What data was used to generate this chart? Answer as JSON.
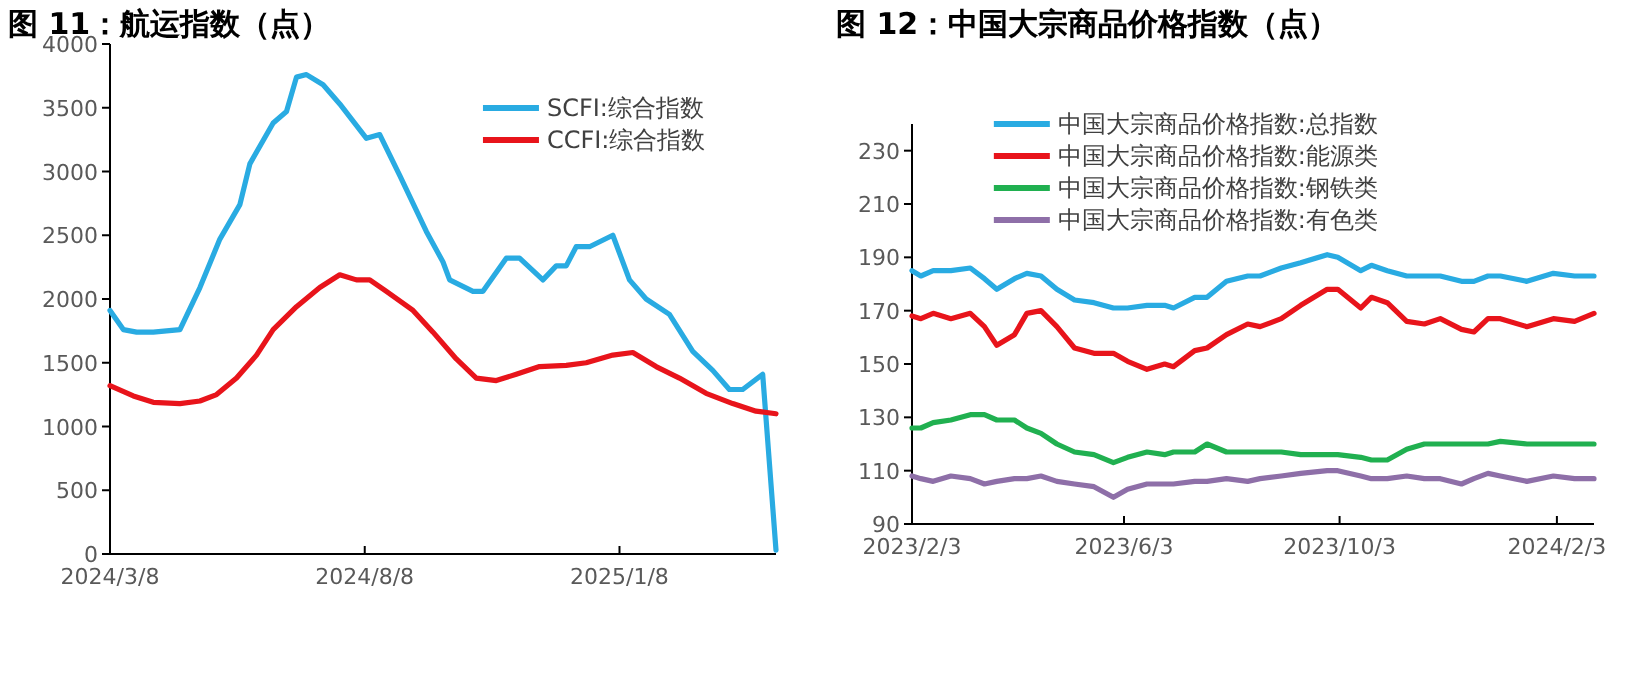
{
  "chart_data": [
    {
      "type": "line",
      "title": "图 11：航运指数（点）",
      "xlim": [
        "2024-03-08",
        "2025-04-12"
      ],
      "ylim": [
        0,
        4000
      ],
      "xticks": [
        {
          "value": "2024-03-08",
          "label": "2024/3/8"
        },
        {
          "value": "2024-08-08",
          "label": "2024/8/8"
        },
        {
          "value": "2025-01-08",
          "label": "2025/1/8"
        }
      ],
      "yticks": [
        0,
        500,
        1000,
        1500,
        2000,
        2500,
        3000,
        3500,
        4000
      ],
      "legend": "top right",
      "series": [
        {
          "name": "SCFI:综合指数",
          "color": "#29abe2",
          "x": [
            "2024-03-08",
            "2024-03-16",
            "2024-03-24",
            "2024-04-03",
            "2024-04-11",
            "2024-04-19",
            "2024-05-01",
            "2024-05-13",
            "2024-05-25",
            "2024-05-31",
            "2024-06-14",
            "2024-06-22",
            "2024-06-28",
            "2024-07-04",
            "2024-07-14",
            "2024-07-24",
            "2024-08-09",
            "2024-08-17",
            "2024-08-29",
            "2024-09-14",
            "2024-09-24",
            "2024-09-28",
            "2024-10-12",
            "2024-10-18",
            "2024-11-01",
            "2024-11-09",
            "2024-11-23",
            "2024-12-01",
            "2024-12-07",
            "2024-12-13",
            "2024-12-21",
            "2025-01-04",
            "2025-01-14",
            "2025-01-24",
            "2025-02-07",
            "2025-02-21",
            "2025-03-05",
            "2025-03-15",
            "2025-03-23",
            "2025-04-04",
            "2025-04-12"
          ],
          "values": [
            1910,
            1760,
            1740,
            1740,
            1750,
            1760,
            2090,
            2470,
            2740,
            3060,
            3380,
            3470,
            3740,
            3760,
            3680,
            3530,
            3260,
            3290,
            2970,
            2530,
            2290,
            2150,
            2060,
            2060,
            2320,
            2320,
            2150,
            2260,
            2260,
            2410,
            2410,
            2500,
            2150,
            2000,
            1880,
            1590,
            1440,
            1290,
            1290,
            1410,
            30
          ]
        },
        {
          "name": "CCFI:综合指数",
          "color": "#e8141b",
          "x": [
            "2024-03-08",
            "2024-03-22",
            "2024-04-03",
            "2024-04-19",
            "2024-05-01",
            "2024-05-11",
            "2024-05-23",
            "2024-06-04",
            "2024-06-14",
            "2024-06-28",
            "2024-07-12",
            "2024-07-24",
            "2024-08-03",
            "2024-08-11",
            "2024-08-21",
            "2024-09-06",
            "2024-09-18",
            "2024-10-02",
            "2024-10-14",
            "2024-10-26",
            "2024-11-07",
            "2024-11-21",
            "2024-12-07",
            "2024-12-19",
            "2025-01-04",
            "2025-01-16",
            "2025-01-30",
            "2025-02-13",
            "2025-03-01",
            "2025-03-17",
            "2025-03-31",
            "2025-04-12"
          ],
          "values": [
            1320,
            1240,
            1190,
            1180,
            1200,
            1250,
            1380,
            1560,
            1760,
            1940,
            2090,
            2190,
            2150,
            2150,
            2060,
            1910,
            1740,
            1530,
            1380,
            1360,
            1410,
            1470,
            1480,
            1500,
            1560,
            1580,
            1470,
            1380,
            1260,
            1180,
            1120,
            1100
          ]
        }
      ]
    },
    {
      "type": "line",
      "title": "图 12：中国大宗商品价格指数（点）",
      "xlim": [
        "2023-02-03",
        "2024-02-24"
      ],
      "ylim": [
        90,
        240
      ],
      "xticks": [
        {
          "value": "2023-02-03",
          "label": "2023/2/3"
        },
        {
          "value": "2023-06-03",
          "label": "2023/6/3"
        },
        {
          "value": "2023-10-03",
          "label": "2023/10/3"
        },
        {
          "value": "2024-02-03",
          "label": "2024/2/3"
        }
      ],
      "yticks": [
        90,
        110,
        130,
        150,
        170,
        190,
        210,
        230
      ],
      "legend": "top",
      "x": [
        "2023-02-03",
        "2023-02-08",
        "2023-02-15",
        "2023-02-25",
        "2023-03-08",
        "2023-03-16",
        "2023-03-23",
        "2023-04-02",
        "2023-04-09",
        "2023-04-17",
        "2023-04-26",
        "2023-05-06",
        "2023-05-17",
        "2023-05-28",
        "2023-06-05",
        "2023-06-16",
        "2023-06-26",
        "2023-07-01",
        "2023-07-13",
        "2023-07-20",
        "2023-07-31",
        "2023-08-12",
        "2023-08-19",
        "2023-08-31",
        "2023-09-11",
        "2023-09-26",
        "2023-10-02",
        "2023-10-15",
        "2023-10-21",
        "2023-10-30",
        "2023-11-10",
        "2023-11-20",
        "2023-11-29",
        "2023-12-11",
        "2023-12-18",
        "2023-12-26",
        "2024-01-02",
        "2024-01-17",
        "2024-02-01",
        "2024-02-13",
        "2024-02-24"
      ],
      "series": [
        {
          "name": "中国大宗商品价格指数:总指数",
          "color": "#29abe2",
          "values": [
            185,
            183,
            185,
            185,
            186,
            182,
            178,
            182,
            184,
            183,
            178,
            174,
            173,
            171,
            171,
            172,
            172,
            171,
            175,
            175,
            181,
            183,
            183,
            186,
            188,
            191,
            190,
            185,
            187,
            185,
            183,
            183,
            183,
            181,
            181,
            183,
            183,
            181,
            184,
            183,
            183
          ]
        },
        {
          "name": "中国大宗商品价格指数:能源类",
          "color": "#e8141b",
          "values": [
            168,
            167,
            169,
            167,
            169,
            164,
            157,
            161,
            169,
            170,
            164,
            156,
            154,
            154,
            151,
            148,
            150,
            149,
            155,
            156,
            161,
            165,
            164,
            167,
            172,
            178,
            178,
            171,
            175,
            173,
            166,
            165,
            167,
            163,
            162,
            167,
            167,
            164,
            167,
            166,
            169
          ]
        },
        {
          "name": "中国大宗商品价格指数:钢铁类",
          "color": "#20b050",
          "values": [
            126,
            126,
            128,
            129,
            131,
            131,
            129,
            129,
            126,
            124,
            120,
            117,
            116,
            113,
            115,
            117,
            116,
            117,
            117,
            120,
            117,
            117,
            117,
            117,
            116,
            116,
            116,
            115,
            114,
            114,
            118,
            120,
            120,
            120,
            120,
            120,
            121,
            120,
            120,
            120,
            120
          ]
        },
        {
          "name": "中国大宗商品价格指数:有色类",
          "color": "#8e6fa8",
          "values": [
            108,
            107,
            106,
            108,
            107,
            105,
            106,
            107,
            107,
            108,
            106,
            105,
            104,
            100,
            103,
            105,
            105,
            105,
            106,
            106,
            107,
            106,
            107,
            108,
            109,
            110,
            110,
            108,
            107,
            107,
            108,
            107,
            107,
            105,
            107,
            109,
            108,
            106,
            108,
            107,
            107
          ]
        }
      ]
    }
  ]
}
